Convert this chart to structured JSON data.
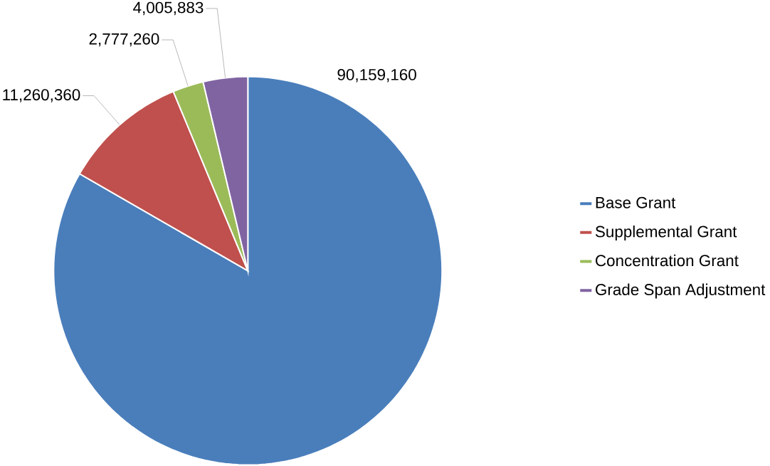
{
  "chart_data": {
    "type": "pie",
    "categories": [
      "Base Grant",
      "Supplemental Grant",
      "Concentration Grant",
      "Grade Span Adjustment"
    ],
    "values": [
      90159160,
      11260360,
      2777260,
      4005883
    ],
    "colors": [
      "#4a7ebb",
      "#c0504d",
      "#9bbb59",
      "#8064a2"
    ],
    "value_labels": [
      "90,159,160",
      "11,260,360",
      "2,777,260",
      "4,005,883"
    ],
    "legend": "right"
  }
}
